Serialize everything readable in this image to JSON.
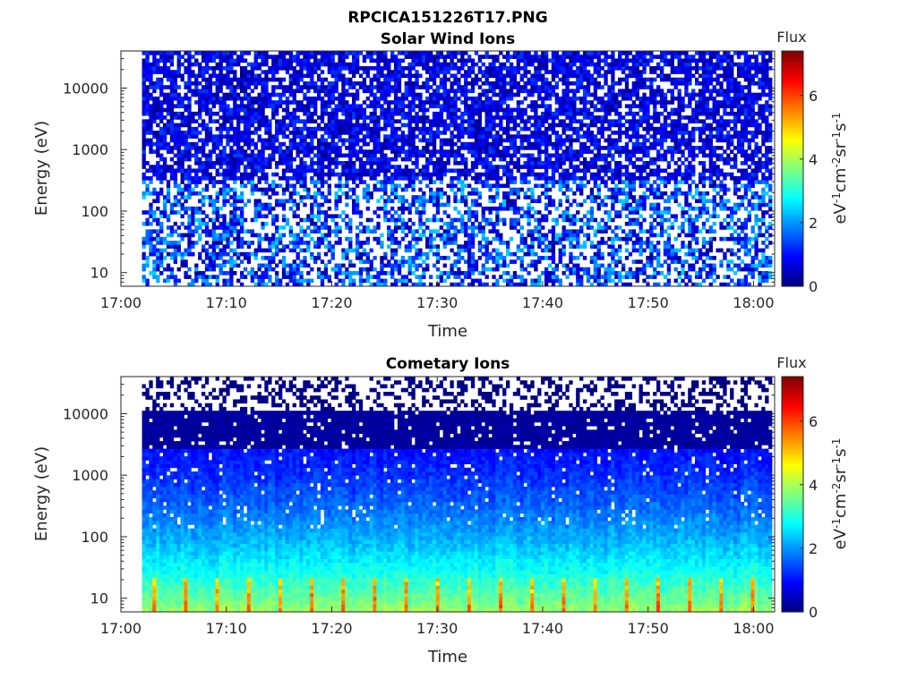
{
  "figure": {
    "title": "RPCICA151226T17.PNG"
  },
  "chart_data": [
    {
      "type": "heatmap",
      "title": "Solar Wind Ions",
      "xlabel": "Time",
      "ylabel": "Energy (eV)",
      "x_ticks": [
        "17:00",
        "17:10",
        "17:20",
        "17:30",
        "17:40",
        "17:50",
        "18:00"
      ],
      "x_range": [
        "17:00",
        "18:02"
      ],
      "data_start": "17:02",
      "y_scale": "log",
      "y_ticks": [
        "10",
        "100",
        "1000",
        "10000"
      ],
      "y_range_ev": [
        6,
        40000
      ],
      "colorbar": {
        "title": "Flux",
        "label_parts": [
          "eV",
          "-1",
          "cm",
          "-2",
          "sr",
          "-1",
          "s",
          "-1"
        ],
        "ticks": [
          "0",
          "2",
          "4",
          "6"
        ],
        "range": [
          0,
          7.4
        ],
        "colormap": "jet"
      },
      "description": "Mostly low flux (0-1.5) across all energies; many empty bins, especially below 300 eV."
    },
    {
      "type": "heatmap",
      "title": "Cometary Ions",
      "xlabel": "Time",
      "ylabel": "Energy (eV)",
      "x_ticks": [
        "17:00",
        "17:10",
        "17:20",
        "17:30",
        "17:40",
        "17:50",
        "18:00"
      ],
      "x_range": [
        "17:00",
        "18:02"
      ],
      "data_start": "17:02",
      "y_scale": "log",
      "y_ticks": [
        "10",
        "100",
        "1000",
        "10000"
      ],
      "y_range_ev": [
        6,
        40000
      ],
      "colorbar": {
        "title": "Flux",
        "label_parts": [
          "eV",
          "-1",
          "cm",
          "-2",
          "sr",
          "-1",
          "s",
          "-1"
        ],
        "ticks": [
          "0",
          "2",
          "4",
          "6"
        ],
        "range": [
          0,
          7.4
        ],
        "colormap": "jet"
      },
      "description": "Flux rises toward low energies (~3 at 10-30 eV) with periodic peaks up to ~5 at ~20 eV; sparse/empty above 10000 eV."
    }
  ]
}
